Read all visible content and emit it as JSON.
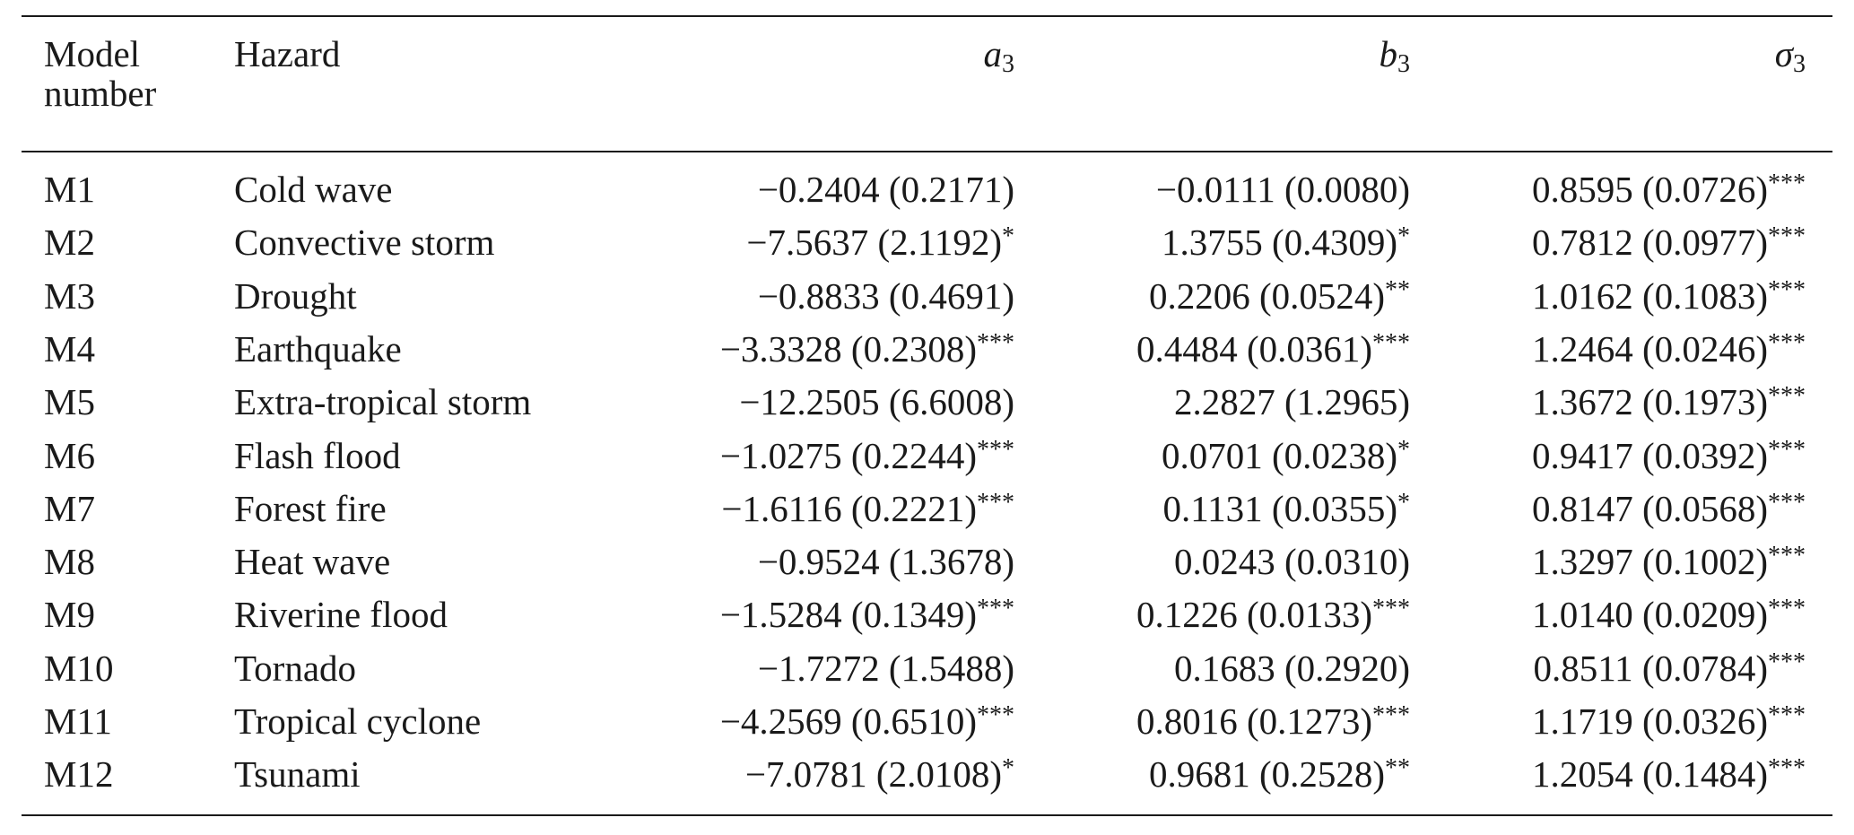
{
  "table": {
    "header": [
      "Model number",
      "Hazard",
      {
        "symbol": "a",
        "subscript": "3"
      },
      {
        "symbol": "b",
        "subscript": "3"
      },
      {
        "symbol": "σ",
        "subscript": "3"
      }
    ],
    "rows": [
      [
        "M1",
        "Cold wave",
        {
          "text": "−0.2404 (0.2171)"
        },
        {
          "text": "−0.0111 (0.0080)"
        },
        {
          "text": "0.8595 (0.0726)",
          "sig": "***"
        }
      ],
      [
        "M2",
        "Convective storm",
        {
          "text": "−7.5637 (2.1192)",
          "sig": "*"
        },
        {
          "text": "1.3755 (0.4309)",
          "sig": "*"
        },
        {
          "text": "0.7812 (0.0977)",
          "sig": "***"
        }
      ],
      [
        "M3",
        "Drought",
        {
          "text": "−0.8833 (0.4691)"
        },
        {
          "text": "0.2206 (0.0524)",
          "sig": "**"
        },
        {
          "text": "1.0162 (0.1083)",
          "sig": "***"
        }
      ],
      [
        "M4",
        "Earthquake",
        {
          "text": "−3.3328 (0.2308)",
          "sig": "***"
        },
        {
          "text": "0.4484 (0.0361)",
          "sig": "***"
        },
        {
          "text": "1.2464 (0.0246)",
          "sig": "***"
        }
      ],
      [
        "M5",
        "Extra-tropical storm",
        {
          "text": "−12.2505 (6.6008)"
        },
        {
          "text": "2.2827 (1.2965)"
        },
        {
          "text": "1.3672 (0.1973)",
          "sig": "***"
        }
      ],
      [
        "M6",
        "Flash flood",
        {
          "text": "−1.0275 (0.2244)",
          "sig": "***"
        },
        {
          "text": "0.0701 (0.0238)",
          "sig": "*"
        },
        {
          "text": "0.9417 (0.0392)",
          "sig": "***"
        }
      ],
      [
        "M7",
        "Forest fire",
        {
          "text": "−1.6116 (0.2221)",
          "sig": "***"
        },
        {
          "text": "0.1131 (0.0355)",
          "sig": "*"
        },
        {
          "text": "0.8147 (0.0568)",
          "sig": "***"
        }
      ],
      [
        "M8",
        "Heat wave",
        {
          "text": "−0.9524 (1.3678)"
        },
        {
          "text": "0.0243 (0.0310)"
        },
        {
          "text": "1.3297 (0.1002)",
          "sig": "***"
        }
      ],
      [
        "M9",
        "Riverine flood",
        {
          "text": "−1.5284 (0.1349)",
          "sig": "***"
        },
        {
          "text": "0.1226 (0.0133)",
          "sig": "***"
        },
        {
          "text": "1.0140 (0.0209)",
          "sig": "***"
        }
      ],
      [
        "M10",
        "Tornado",
        {
          "text": "−1.7272 (1.5488)"
        },
        {
          "text": "0.1683 (0.2920)"
        },
        {
          "text": "0.8511 (0.0784)",
          "sig": "***"
        }
      ],
      [
        "M11",
        "Tropical cyclone",
        {
          "text": "−4.2569 (0.6510)",
          "sig": "***"
        },
        {
          "text": "0.8016 (0.1273)",
          "sig": "***"
        },
        {
          "text": "1.1719 (0.0326)",
          "sig": "***"
        }
      ],
      [
        "M12",
        "Tsunami",
        {
          "text": "−7.0781 (2.0108)",
          "sig": "*"
        },
        {
          "text": "0.9681 (0.2528)",
          "sig": "**"
        },
        {
          "text": "1.2054 (0.1484)",
          "sig": "***"
        }
      ]
    ]
  }
}
